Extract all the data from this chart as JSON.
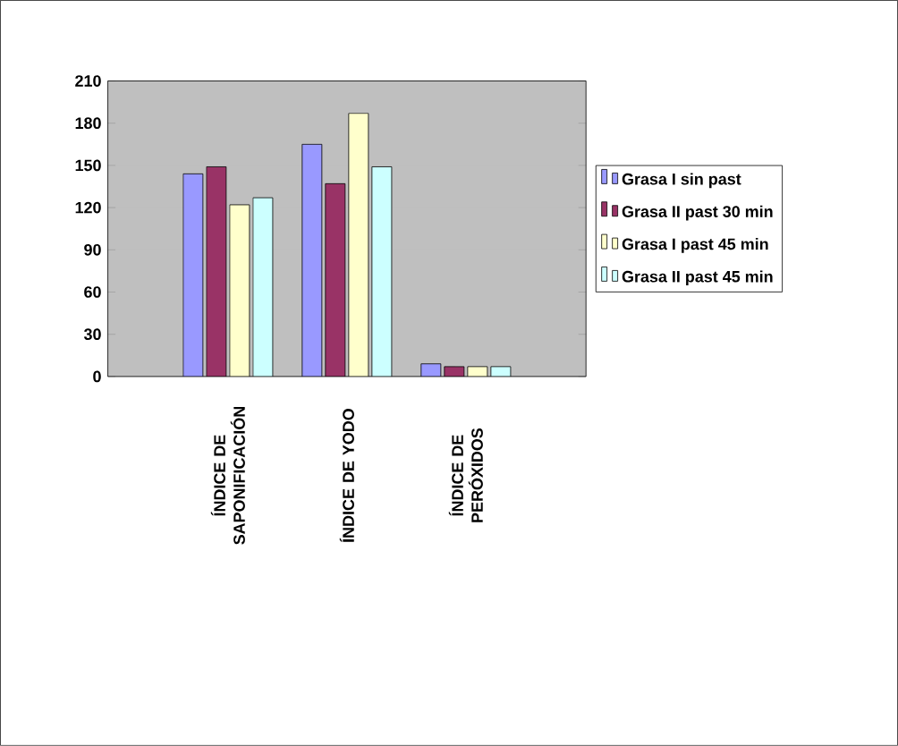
{
  "chart_data": {
    "type": "bar",
    "categories": [
      "ÍNDICE DE SAPONIFICACIÓN",
      "ÍNDICE DE YODO",
      "ÍNDICE DE PERÓXIDOS"
    ],
    "series": [
      {
        "name": "Grasa I sin past",
        "color": "#9999ff",
        "values": [
          144,
          165,
          9
        ]
      },
      {
        "name": "Grasa II past 30 min",
        "color": "#993366",
        "values": [
          149,
          137,
          7
        ]
      },
      {
        "name": "Grasa I past 45 min",
        "color": "#ffffcc",
        "values": [
          122,
          187,
          7
        ]
      },
      {
        "name": "Grasa II past 45 min",
        "color": "#ccffff",
        "values": [
          127,
          149,
          7
        ]
      }
    ],
    "ylim": [
      0,
      210
    ],
    "yticks": [
      0,
      30,
      60,
      90,
      120,
      150,
      180,
      210
    ],
    "grid": "y",
    "legend": "right"
  }
}
